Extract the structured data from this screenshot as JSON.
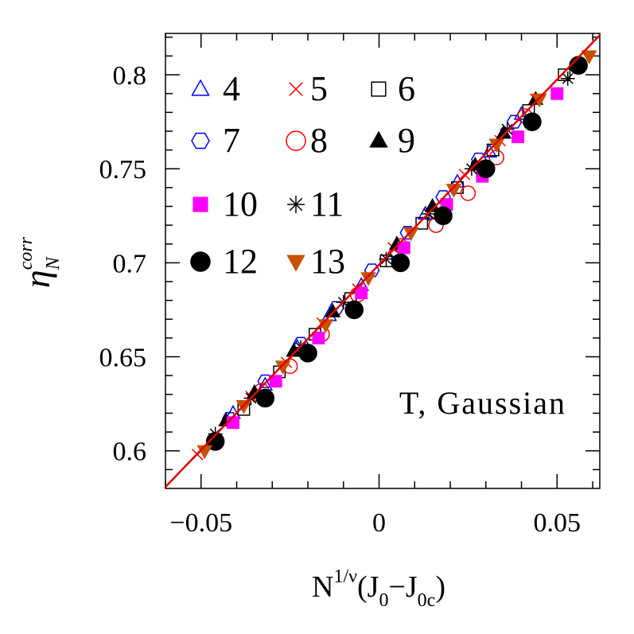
{
  "chart_data": {
    "type": "scatter",
    "xlim": [
      -0.06,
      0.062
    ],
    "ylim": [
      0.58,
      0.822
    ],
    "xticks": [
      {
        "value": -0.05,
        "label": "−0.05"
      },
      0,
      0.05
    ],
    "yticks": [
      0.6,
      0.65,
      0.7,
      0.75,
      0.8
    ],
    "xminorticks": [
      -0.06,
      -0.04,
      -0.03,
      -0.02,
      -0.01,
      0.01,
      0.02,
      0.03,
      0.04,
      0.06
    ],
    "yminorticks": [
      0.59,
      0.61,
      0.62,
      0.63,
      0.64,
      0.66,
      0.67,
      0.68,
      0.69,
      0.71,
      0.72,
      0.73,
      0.74,
      0.76,
      0.77,
      0.78,
      0.79,
      0.81,
      0.82
    ],
    "xlabel": [
      {
        "text": "N"
      },
      {
        "text": "1/ν",
        "pos": "sup"
      },
      {
        "text": "(J"
      },
      {
        "text": "0",
        "pos": "sub"
      },
      {
        "text": "−J"
      },
      {
        "text": "0c",
        "pos": "sub"
      },
      {
        "text": ")"
      }
    ],
    "ylabel": [
      {
        "text": "η"
      },
      {
        "text": "N",
        "pos": "sub"
      },
      {
        "text": "corr",
        "pos": "sup"
      }
    ],
    "annotation": "T, Gaussian",
    "fit_line": {
      "color": "#e00000",
      "x": [
        -0.06,
        0.062
      ],
      "values": [
        0.5808,
        0.8211
      ]
    },
    "series": [
      {
        "name": "4",
        "color": "#0000ff",
        "marker": "triangle",
        "filled": false,
        "x": [
          -0.041,
          -0.032,
          -0.023,
          -0.014,
          -0.005,
          0.004,
          0.013,
          0.022,
          0.031,
          0.04
        ],
        "values": [
          0.62,
          0.635,
          0.655,
          0.672,
          0.688,
          0.706,
          0.726,
          0.743,
          0.759,
          0.779
        ]
      },
      {
        "name": "5",
        "color": "#ff0000",
        "marker": "x",
        "filled": false,
        "x": [
          -0.051,
          -0.036,
          -0.026,
          -0.016,
          -0.006,
          0.004,
          0.014,
          0.024,
          0.034,
          0.044
        ],
        "values": [
          0.598,
          0.629,
          0.647,
          0.668,
          0.686,
          0.708,
          0.726,
          0.747,
          0.765,
          0.787
        ]
      },
      {
        "name": "6",
        "color": "#000000",
        "marker": "square",
        "filled": false,
        "x": [
          -0.038,
          -0.028,
          -0.018,
          -0.008,
          0.002,
          0.012,
          0.022,
          0.032,
          0.042,
          0.052
        ],
        "values": [
          0.622,
          0.642,
          0.662,
          0.681,
          0.701,
          0.721,
          0.74,
          0.76,
          0.781,
          0.8
        ]
      },
      {
        "name": "7",
        "color": "#0000ff",
        "marker": "hexagon",
        "filled": false,
        "x": [
          -0.042,
          -0.032,
          -0.022,
          -0.012,
          -0.002,
          0.008,
          0.018,
          0.028,
          0.038
        ],
        "values": [
          0.617,
          0.637,
          0.657,
          0.676,
          0.696,
          0.716,
          0.735,
          0.755,
          0.775
        ]
      },
      {
        "name": "8",
        "color": "#ff0000",
        "marker": "circle",
        "filled": false,
        "x": [
          -0.033,
          -0.025,
          -0.016,
          -0.006,
          0.006,
          0.016,
          0.025,
          0.033,
          0.041
        ],
        "values": [
          0.632,
          0.645,
          0.662,
          0.683,
          0.709,
          0.72,
          0.737,
          0.756,
          0.778
        ]
      },
      {
        "name": "9",
        "color": "#000000",
        "marker": "triangle",
        "filled": true,
        "x": [
          -0.043,
          -0.035,
          -0.024,
          -0.013,
          0.005,
          0.015,
          0.027,
          0.035,
          0.044
        ],
        "values": [
          0.616,
          0.631,
          0.653,
          0.674,
          0.71,
          0.73,
          0.752,
          0.769,
          0.787
        ]
      },
      {
        "name": "10",
        "color": "#ff00ff",
        "marker": "square",
        "filled": true,
        "x": [
          -0.041,
          -0.029,
          -0.017,
          -0.005,
          0.007,
          0.019,
          0.029,
          0.039,
          0.05
        ],
        "values": [
          0.615,
          0.637,
          0.66,
          0.684,
          0.708,
          0.731,
          0.746,
          0.767,
          0.79
        ]
      },
      {
        "name": "11",
        "color": "#000000",
        "marker": "asterisk",
        "filled": false,
        "x": [
          -0.046,
          -0.036,
          -0.022,
          -0.01,
          0.002,
          0.014,
          0.026,
          0.036,
          0.053
        ],
        "values": [
          0.609,
          0.628,
          0.655,
          0.679,
          0.702,
          0.726,
          0.75,
          0.771,
          0.798
        ]
      },
      {
        "name": "12",
        "color": "#000000",
        "marker": "circle",
        "filled": true,
        "x": [
          -0.046,
          -0.032,
          -0.02,
          -0.007,
          0.006,
          0.018,
          0.03,
          0.043,
          0.056
        ],
        "values": [
          0.605,
          0.628,
          0.652,
          0.675,
          0.7,
          0.725,
          0.75,
          0.775,
          0.805
        ]
      },
      {
        "name": "13",
        "color": "#c85000",
        "marker": "triangle-down",
        "filled": true,
        "x": [
          -0.049,
          -0.038,
          -0.027,
          -0.015,
          -0.003,
          0.009,
          0.021,
          0.033,
          0.045,
          0.059
        ],
        "values": [
          0.6,
          0.624,
          0.645,
          0.667,
          0.692,
          0.716,
          0.739,
          0.763,
          0.787,
          0.81
        ]
      }
    ]
  }
}
